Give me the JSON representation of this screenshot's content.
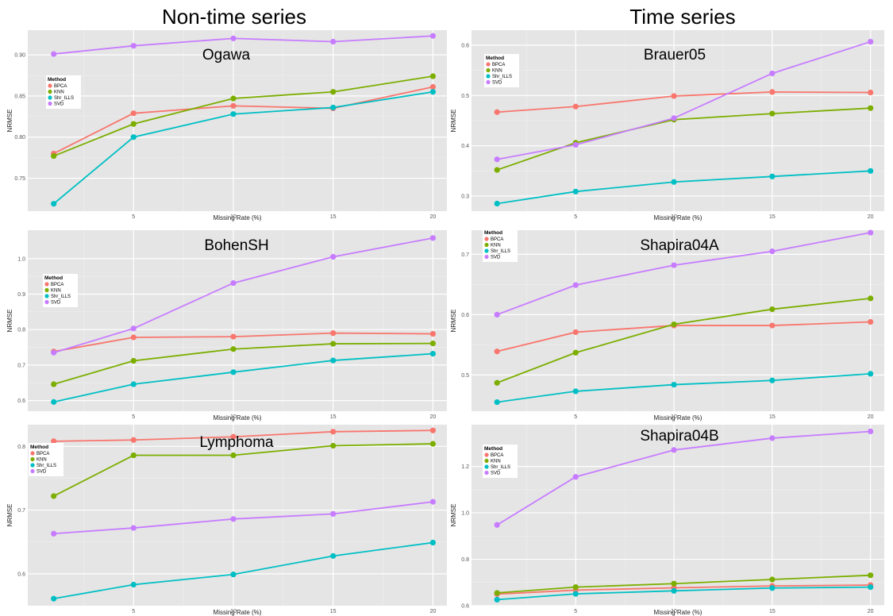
{
  "headers": {
    "left": "Non-time series",
    "right": "Time series"
  },
  "colors": {
    "BPCA": "#F8766D",
    "KNN": "#7CAE00",
    "Shr_ILLS": "#00BFC4",
    "SVD": "#C77CFF"
  },
  "chart_data": [
    {
      "type": "line",
      "title": "Ogawa",
      "xlabel": "Missing Rate (%)",
      "ylabel": "NRMSE",
      "x": [
        1,
        5,
        10,
        15,
        20
      ],
      "xticks": [
        5,
        10,
        15,
        20
      ],
      "ylim": [
        0.71,
        0.93
      ],
      "yticks": [
        0.75,
        0.8,
        0.85,
        0.9
      ],
      "ytick_labels": [
        "0.75",
        "0.80",
        "0.85",
        "0.90"
      ],
      "legend_title": "Method",
      "legend_position": "left",
      "series": [
        {
          "name": "BPCA",
          "values": [
            0.78,
            0.829,
            0.838,
            0.835,
            0.861
          ]
        },
        {
          "name": "KNN",
          "values": [
            0.777,
            0.816,
            0.847,
            0.855,
            0.874
          ]
        },
        {
          "name": "Shr_ILLS",
          "values": [
            0.719,
            0.8,
            0.828,
            0.836,
            0.855
          ]
        },
        {
          "name": "SVD",
          "values": [
            0.901,
            0.911,
            0.92,
            0.916,
            0.923
          ]
        }
      ]
    },
    {
      "type": "line",
      "title": "Brauer05",
      "xlabel": "Missing Rate (%)",
      "ylabel": "NRMSE",
      "x": [
        1,
        5,
        10,
        15,
        20
      ],
      "xticks": [
        5,
        10,
        15,
        20
      ],
      "ylim": [
        0.27,
        0.63
      ],
      "yticks": [
        0.3,
        0.4,
        0.5,
        0.6
      ],
      "ytick_labels": [
        "0.3",
        "0.4",
        "0.5",
        "0.6"
      ],
      "legend_title": "Method",
      "legend_position": "left",
      "series": [
        {
          "name": "BPCA",
          "values": [
            0.467,
            0.478,
            0.499,
            0.507,
            0.506
          ]
        },
        {
          "name": "KNN",
          "values": [
            0.352,
            0.406,
            0.452,
            0.464,
            0.475
          ]
        },
        {
          "name": "Shr_ILLS",
          "values": [
            0.285,
            0.309,
            0.328,
            0.339,
            0.35
          ]
        },
        {
          "name": "SVD",
          "values": [
            0.373,
            0.402,
            0.455,
            0.544,
            0.607
          ]
        }
      ]
    },
    {
      "type": "line",
      "title": "BohenSH",
      "xlabel": "Missing Rate (%)",
      "ylabel": "NRMSE",
      "x": [
        1,
        5,
        10,
        15,
        20
      ],
      "xticks": [
        5,
        10,
        15,
        20
      ],
      "ylim": [
        0.57,
        1.08
      ],
      "yticks": [
        0.6,
        0.7,
        0.8,
        0.9,
        1.0
      ],
      "ytick_labels": [
        "0.6",
        "0.7",
        "0.8",
        "0.9",
        "1.0"
      ],
      "legend_title": "Method",
      "legend_position": "left",
      "series": [
        {
          "name": "BPCA",
          "values": [
            0.738,
            0.778,
            0.78,
            0.79,
            0.788
          ]
        },
        {
          "name": "KNN",
          "values": [
            0.646,
            0.712,
            0.745,
            0.76,
            0.761
          ]
        },
        {
          "name": "Shr_ILLS",
          "values": [
            0.596,
            0.646,
            0.68,
            0.713,
            0.732
          ]
        },
        {
          "name": "SVD",
          "values": [
            0.735,
            0.803,
            0.931,
            1.005,
            1.058
          ]
        }
      ]
    },
    {
      "type": "line",
      "title": "Shapira04A",
      "xlabel": "Missing Rate (%)",
      "ylabel": "NRMSE",
      "x": [
        1,
        5,
        10,
        15,
        20
      ],
      "xticks": [
        5,
        10,
        15,
        20
      ],
      "ylim": [
        0.44,
        0.74
      ],
      "yticks": [
        0.5,
        0.6,
        0.7
      ],
      "ytick_labels": [
        "0.5",
        "0.6",
        "0.7"
      ],
      "legend_title": "Method",
      "legend_position": "left",
      "series": [
        {
          "name": "BPCA",
          "values": [
            0.539,
            0.571,
            0.582,
            0.582,
            0.588
          ]
        },
        {
          "name": "KNN",
          "values": [
            0.487,
            0.537,
            0.584,
            0.609,
            0.627
          ]
        },
        {
          "name": "Shr_ILLS",
          "values": [
            0.455,
            0.473,
            0.484,
            0.491,
            0.502
          ]
        },
        {
          "name": "SVD",
          "values": [
            0.6,
            0.649,
            0.682,
            0.705,
            0.736
          ]
        }
      ]
    },
    {
      "type": "line",
      "title": "Lymphoma",
      "xlabel": "Missing Rate (%)",
      "ylabel": "NRMSE",
      "x": [
        1,
        5,
        10,
        15,
        20
      ],
      "xticks": [
        5,
        10,
        15,
        20
      ],
      "ylim": [
        0.55,
        0.834
      ],
      "yticks": [
        0.6,
        0.7,
        0.8
      ],
      "ytick_labels": [
        "0.6",
        "0.7",
        "0.8"
      ],
      "legend_title": "Method",
      "legend_position": "left",
      "series": [
        {
          "name": "BPCA",
          "values": [
            0.808,
            0.81,
            0.815,
            0.823,
            0.825
          ]
        },
        {
          "name": "KNN",
          "values": [
            0.722,
            0.786,
            0.786,
            0.801,
            0.804
          ]
        },
        {
          "name": "Shr_ILLS",
          "values": [
            0.561,
            0.583,
            0.599,
            0.628,
            0.649
          ]
        },
        {
          "name": "SVD",
          "values": [
            0.663,
            0.672,
            0.686,
            0.694,
            0.713
          ]
        }
      ]
    },
    {
      "type": "line",
      "title": "Shapira04B",
      "xlabel": "Missing Rate (%)",
      "ylabel": "NRMSE",
      "x": [
        1,
        5,
        10,
        15,
        20
      ],
      "xticks": [
        5,
        10,
        15,
        20
      ],
      "ylim": [
        0.6,
        1.38
      ],
      "yticks": [
        0.6,
        0.8,
        1.0,
        1.2
      ],
      "ytick_labels": [
        "0.6",
        "0.8",
        "1.0",
        "1.2"
      ],
      "legend_title": "Method",
      "legend_position": "left",
      "series": [
        {
          "name": "BPCA",
          "values": [
            0.65,
            0.667,
            0.677,
            0.685,
            0.689
          ]
        },
        {
          "name": "KNN",
          "values": [
            0.655,
            0.68,
            0.695,
            0.713,
            0.731
          ]
        },
        {
          "name": "Shr_ILLS",
          "values": [
            0.626,
            0.651,
            0.664,
            0.676,
            0.68
          ]
        },
        {
          "name": "SVD",
          "values": [
            0.948,
            1.155,
            1.271,
            1.322,
            1.351
          ]
        }
      ]
    }
  ]
}
